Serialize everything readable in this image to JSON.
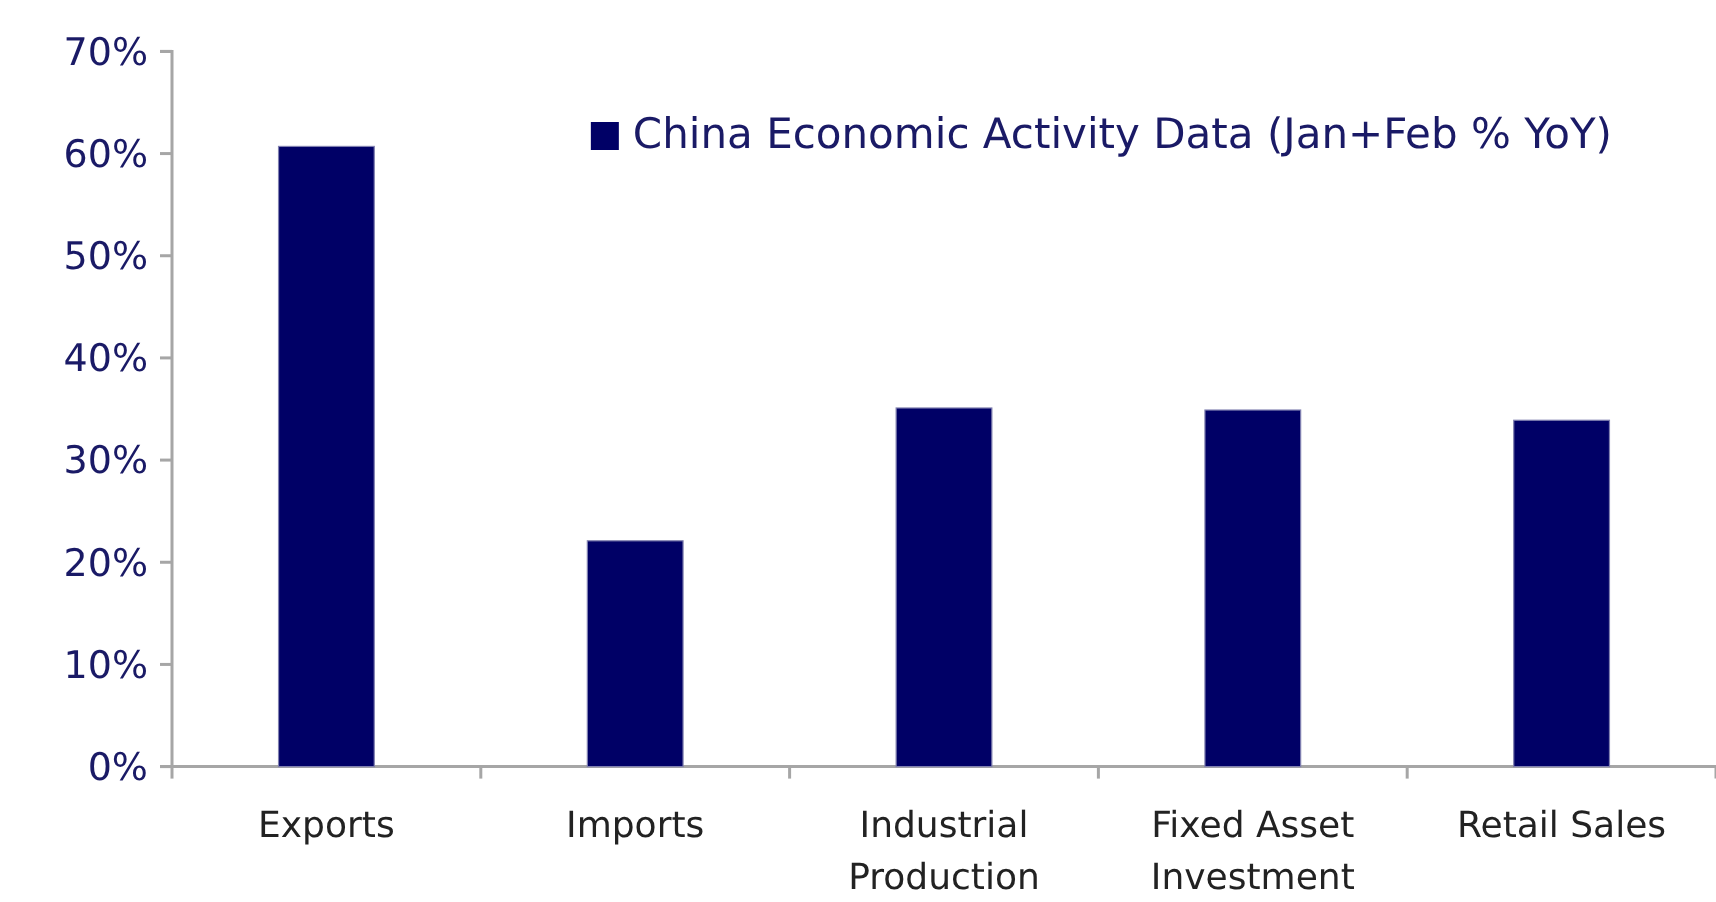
{
  "chart_data": {
    "type": "bar",
    "categories": [
      "Exports",
      "Imports",
      "Industrial Production",
      "Fixed Asset Investment",
      "Retail Sales"
    ],
    "series": [
      {
        "name": "China Economic Activity Data (Jan+Feb % YoY)",
        "color": "#000066",
        "values": [
          60.7,
          22.1,
          35.1,
          34.9,
          33.9
        ]
      }
    ],
    "ylim": [
      0,
      70
    ],
    "yticks": [
      {
        "value": 0,
        "label": "0%"
      },
      {
        "value": 10,
        "label": "10%"
      },
      {
        "value": 20,
        "label": "20%"
      },
      {
        "value": 30,
        "label": "30%"
      },
      {
        "value": 40,
        "label": "40%"
      },
      {
        "value": 50,
        "label": "50%"
      },
      {
        "value": 60,
        "label": "60%"
      },
      {
        "value": 70,
        "label": "70%"
      }
    ],
    "legend": "top right",
    "grid": false
  }
}
